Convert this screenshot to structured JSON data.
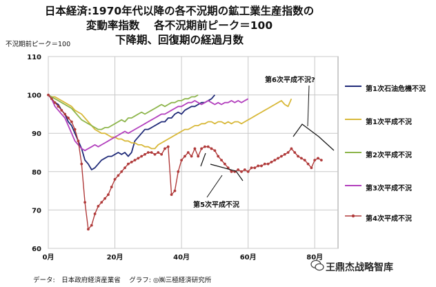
{
  "chart_data": {
    "type": "line",
    "title_lines": [
      "日本経済:1970年代以降の各不況期の鉱工業生産指数の",
      "変動率指数　 各不況期前ピーク＝100",
      "下降期、回復期の経過月数"
    ],
    "ylabel": "不況期前ピーク＝100",
    "xlim": [
      0,
      87
    ],
    "ylim": [
      60,
      110
    ],
    "x_ticks": [
      0,
      20,
      40,
      60,
      80
    ],
    "x_tick_labels": [
      "0月",
      "20月",
      "40月",
      "60月",
      "80月"
    ],
    "y_ticks": [
      60,
      70,
      80,
      90,
      100,
      110
    ],
    "y_tick_labels": [
      "60",
      "70",
      "80",
      "90",
      "100",
      "110"
    ],
    "grid": true,
    "legend_position": "right",
    "series": [
      {
        "name": "第1次石油危機不況",
        "color": "#1f2a78",
        "marker": false,
        "x": [
          0,
          1,
          2,
          3,
          4,
          5,
          6,
          7,
          8,
          9,
          10,
          11,
          12,
          13,
          14,
          15,
          16,
          17,
          18,
          19,
          20,
          21,
          22,
          23,
          24,
          25,
          26,
          27,
          28,
          29,
          30,
          31,
          32,
          33,
          34,
          35,
          36,
          37,
          38,
          39,
          40,
          41,
          42,
          43,
          44,
          45,
          46,
          47,
          48,
          49,
          50
        ],
        "y": [
          100,
          99,
          98,
          97.5,
          96,
          95,
          93,
          92,
          90,
          88,
          86,
          83,
          82,
          80.5,
          81,
          82,
          83,
          83.5,
          84,
          84,
          84.5,
          85,
          84.5,
          85,
          84,
          85,
          88,
          89,
          90,
          91,
          91,
          91.5,
          92,
          92.5,
          93,
          93,
          94,
          94,
          95,
          95.5,
          95,
          96,
          96.5,
          97,
          97,
          97.5,
          98,
          98,
          98.5,
          99,
          100
        ]
      },
      {
        "name": "第1次平成不況",
        "color": "#d8b838",
        "marker": false,
        "x": [
          0,
          1,
          2,
          3,
          4,
          5,
          6,
          7,
          8,
          9,
          10,
          11,
          12,
          13,
          14,
          15,
          16,
          17,
          18,
          19,
          20,
          21,
          22,
          23,
          24,
          25,
          26,
          27,
          28,
          29,
          30,
          31,
          32,
          33,
          34,
          35,
          36,
          37,
          38,
          39,
          40,
          41,
          42,
          43,
          44,
          45,
          46,
          47,
          48,
          49,
          50,
          51,
          52,
          53,
          54,
          55,
          56,
          57,
          58,
          59,
          60,
          61,
          62,
          63,
          64,
          65,
          66,
          67,
          68,
          69,
          70,
          71,
          72,
          73
        ],
        "y": [
          100,
          99.5,
          99.5,
          99,
          98.5,
          98,
          97.5,
          97,
          96,
          95.5,
          95,
          94,
          93,
          92,
          91,
          90.5,
          90,
          90,
          89.5,
          89,
          89,
          88.5,
          88.5,
          88,
          88,
          87.5,
          87.5,
          87,
          87,
          86.5,
          86.5,
          86,
          86,
          87,
          87.5,
          88,
          88.5,
          89,
          89.5,
          90,
          90.5,
          91,
          91,
          91.5,
          92,
          92,
          92.5,
          92.5,
          93,
          93,
          92.5,
          93,
          93,
          92.5,
          93,
          92.5,
          93,
          93,
          92.5,
          93,
          93.5,
          94,
          94.5,
          95,
          95.5,
          96,
          96.5,
          97,
          97.5,
          98,
          98.5,
          97.5,
          97,
          99
        ]
      },
      {
        "name": "第2次平成不況",
        "color": "#8db54b",
        "marker": false,
        "x": [
          0,
          1,
          2,
          3,
          4,
          5,
          6,
          7,
          8,
          9,
          10,
          11,
          12,
          13,
          14,
          15,
          16,
          17,
          18,
          19,
          20,
          21,
          22,
          23,
          24,
          25,
          26,
          27,
          28,
          29,
          30,
          31,
          32,
          33,
          34,
          35,
          36,
          37,
          38,
          39,
          40,
          41,
          42,
          43,
          44,
          45
        ],
        "y": [
          100,
          99.5,
          99,
          98.5,
          98,
          97.5,
          97,
          96.5,
          95.5,
          94.5,
          93.5,
          93,
          92.5,
          92,
          91.5,
          91,
          91,
          91.5,
          91.5,
          92,
          92.5,
          93,
          93.5,
          93,
          94,
          94,
          94.5,
          95,
          95.5,
          95,
          95.5,
          96,
          96.5,
          97,
          97.5,
          97,
          97.5,
          98,
          98,
          98.5,
          98.5,
          99,
          99,
          99.5,
          99.5,
          100
        ]
      },
      {
        "name": "第3次平成不況",
        "color": "#b23fbd",
        "marker": false,
        "x": [
          0,
          1,
          2,
          3,
          4,
          5,
          6,
          7,
          8,
          9,
          10,
          11,
          12,
          13,
          14,
          15,
          16,
          17,
          18,
          19,
          20,
          21,
          22,
          23,
          24,
          25,
          26,
          27,
          28,
          29,
          30,
          31,
          32,
          33,
          34,
          35,
          36,
          37,
          38,
          39,
          40,
          41,
          42,
          43,
          44,
          45,
          46,
          47,
          48,
          49,
          50,
          51,
          52,
          53,
          54,
          55,
          56,
          57,
          58,
          59,
          60
        ],
        "y": [
          100,
          99,
          97,
          96,
          95,
          94,
          92,
          90,
          88,
          87,
          86,
          85.5,
          86,
          86.5,
          87,
          86.5,
          87,
          87.5,
          88,
          88.5,
          89,
          89.5,
          90,
          90.5,
          90,
          90.5,
          91,
          91.5,
          92,
          92.5,
          93,
          93.5,
          94,
          94.5,
          95,
          95,
          95.5,
          96,
          96.5,
          97,
          97,
          97.5,
          98,
          98,
          98.5,
          98,
          97.5,
          98,
          98.5,
          98,
          97.5,
          98,
          97.5,
          98,
          98,
          98.5,
          98,
          98.5,
          98,
          98.5,
          99
        ]
      },
      {
        "name": "第4次平成不況",
        "color": "#b03a3a",
        "marker": true,
        "x": [
          0,
          1,
          2,
          3,
          4,
          5,
          6,
          7,
          8,
          9,
          10,
          11,
          12,
          13,
          14,
          15,
          16,
          17,
          18,
          19,
          20,
          21,
          22,
          23,
          24,
          25,
          26,
          27,
          28,
          29,
          30,
          31,
          32,
          33,
          34,
          35,
          36,
          37,
          38,
          39,
          40,
          41,
          42,
          43,
          44,
          45,
          46,
          47,
          48,
          49,
          50,
          51,
          52,
          53,
          54,
          55,
          56,
          57,
          58,
          59,
          60,
          61,
          62,
          63,
          64,
          65,
          66,
          67,
          68,
          69,
          70,
          71,
          72,
          73,
          74,
          75,
          76,
          77,
          78,
          79,
          80,
          81,
          82
        ],
        "y": [
          100,
          99,
          98,
          97,
          96,
          95,
          94,
          93,
          91,
          88,
          82,
          72,
          65,
          66,
          69,
          71,
          72,
          73,
          74,
          76,
          78,
          79,
          80,
          81,
          82,
          82.5,
          83,
          83.5,
          84,
          84.5,
          85,
          85,
          84.5,
          85,
          84.5,
          86,
          86.5,
          74,
          75,
          80,
          83,
          84,
          85,
          84,
          86,
          84,
          86,
          86.5,
          86.5,
          86,
          85.5,
          84,
          83,
          82,
          81,
          80,
          80,
          80.5,
          80,
          80.5,
          80,
          81,
          81,
          81.5,
          81.5,
          82,
          82,
          82.5,
          83,
          83.5,
          84,
          84.5,
          85,
          86,
          85,
          84,
          83.5,
          83,
          82,
          81,
          83,
          83.5,
          83
        ]
      }
    ],
    "annotations": [
      {
        "text": "第6次平成不況?"
      },
      {
        "text": "第5次平成不況"
      }
    ]
  },
  "footer": {
    "source": "データ:　日本政府経済産業省　 グラフ: ◎㈱三極経済研究所",
    "watermark": "王鼎杰战略智库"
  }
}
